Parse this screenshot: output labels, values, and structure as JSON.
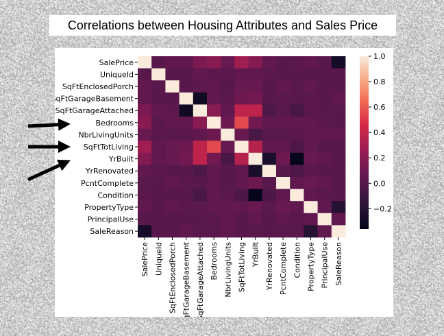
{
  "chart_data": {
    "type": "heatmap",
    "title": "Correlations between Housing Attributes and Sales Price",
    "labels": [
      "SalePrice",
      "UniqueId",
      "SqFtEnclosedPorch",
      "SqFtGarageBasement",
      "SqFtGarageAttached",
      "Bedrooms",
      "NbrLivingUnits",
      "SqFtTotLiving",
      "YrBuilt",
      "YrRenovated",
      "PcntComplete",
      "Condition",
      "PropertyType",
      "PrincipalUse",
      "SaleReason"
    ],
    "matrix": [
      [
        1.0,
        0.02,
        0.05,
        0.05,
        0.15,
        0.2,
        0.08,
        0.28,
        0.18,
        0.05,
        0.02,
        0.03,
        0.05,
        0.02,
        -0.28
      ],
      [
        0.02,
        1.0,
        0.02,
        0.02,
        0.05,
        0.03,
        0.03,
        0.05,
        0.05,
        0.03,
        0.02,
        0.02,
        0.02,
        0.02,
        0.02
      ],
      [
        0.05,
        0.02,
        1.0,
        0.02,
        0.04,
        0.05,
        0.02,
        0.08,
        0.08,
        0.02,
        0.05,
        0.02,
        0.05,
        0.02,
        0.02
      ],
      [
        0.05,
        0.02,
        0.02,
        1.0,
        -0.3,
        0.05,
        0.03,
        0.1,
        0.12,
        0.02,
        0.03,
        0.02,
        0.03,
        0.02,
        0.05
      ],
      [
        0.15,
        0.05,
        0.04,
        -0.3,
        1.0,
        0.2,
        0.05,
        0.38,
        0.38,
        -0.03,
        0.02,
        -0.05,
        0.03,
        0.02,
        0.02
      ],
      [
        0.2,
        0.03,
        0.05,
        0.05,
        0.2,
        1.0,
        0.1,
        0.55,
        0.12,
        0.05,
        0.05,
        0.05,
        0.05,
        0.03,
        0.02
      ],
      [
        0.08,
        0.03,
        0.02,
        0.03,
        0.05,
        0.1,
        1.0,
        0.08,
        -0.05,
        0.02,
        0.02,
        0.03,
        0.05,
        0.05,
        0.05
      ],
      [
        0.28,
        0.05,
        0.08,
        0.1,
        0.38,
        0.55,
        0.08,
        1.0,
        0.35,
        0.05,
        0.05,
        -0.02,
        0.05,
        0.02,
        0.02
      ],
      [
        0.18,
        0.05,
        0.08,
        0.12,
        0.38,
        0.12,
        -0.05,
        0.35,
        1.0,
        -0.25,
        0.1,
        -0.35,
        0.08,
        0.05,
        0.02
      ],
      [
        0.05,
        0.03,
        0.02,
        0.02,
        -0.03,
        0.05,
        0.02,
        0.05,
        -0.25,
        1.0,
        0.02,
        -0.02,
        0.03,
        0.02,
        0.02
      ],
      [
        0.02,
        0.02,
        0.05,
        0.03,
        0.02,
        0.05,
        0.02,
        0.05,
        0.1,
        0.02,
        1.0,
        0.05,
        0.08,
        0.05,
        0.02
      ],
      [
        0.03,
        0.02,
        0.02,
        0.02,
        -0.05,
        0.05,
        0.03,
        -0.02,
        -0.35,
        -0.02,
        0.05,
        1.0,
        0.05,
        0.03,
        0.02
      ],
      [
        0.05,
        0.02,
        0.05,
        0.03,
        0.03,
        0.05,
        0.05,
        0.05,
        0.08,
        0.03,
        0.08,
        0.05,
        1.0,
        0.05,
        -0.2
      ],
      [
        0.02,
        0.02,
        0.02,
        0.02,
        0.02,
        0.03,
        0.05,
        0.02,
        0.05,
        0.02,
        0.05,
        0.03,
        0.05,
        1.0,
        0.05
      ],
      [
        -0.28,
        0.02,
        0.02,
        0.05,
        0.02,
        0.02,
        0.05,
        0.02,
        0.02,
        0.02,
        0.02,
        0.02,
        -0.2,
        0.05,
        1.0
      ]
    ],
    "colorbar": {
      "ticks": [
        "1.0",
        "0.8",
        "0.6",
        "0.4",
        "0.2",
        "0.0",
        "−0.2"
      ],
      "tick_values": [
        1.0,
        0.8,
        0.6,
        0.4,
        0.2,
        0.0,
        -0.2
      ],
      "vmin": -0.36,
      "vmax": 1.0,
      "colormap": "rocket"
    },
    "annotations": {
      "arrow_targets": [
        "Bedrooms",
        "SqFtTotLiving",
        "YrBuilt"
      ]
    }
  }
}
